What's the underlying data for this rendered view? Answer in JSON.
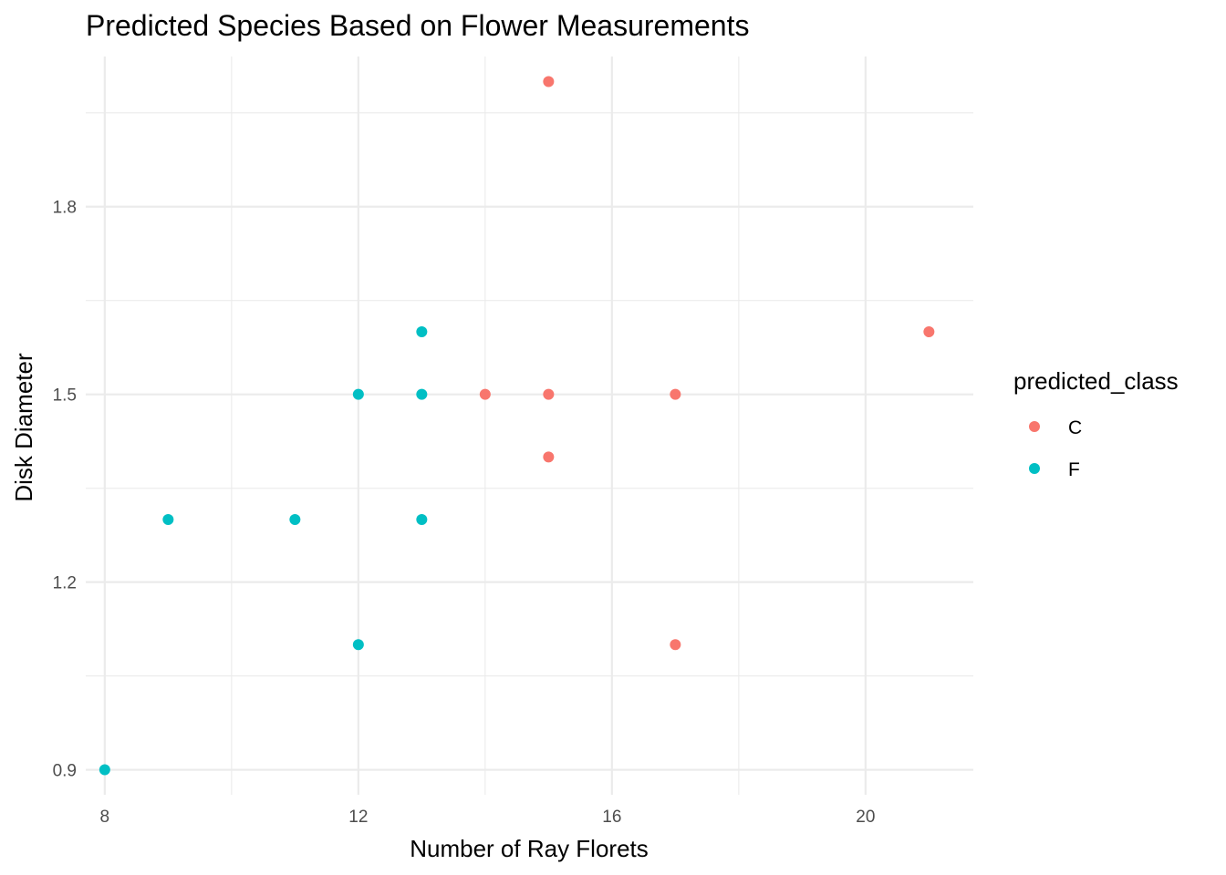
{
  "chart_data": {
    "type": "scatter",
    "title": "Predicted Species Based on Flower Measurements",
    "xlabel": "Number of Ray Florets",
    "ylabel": "Disk Diameter",
    "xlim": [
      7.7,
      21.7
    ],
    "ylim": [
      0.86,
      2.04
    ],
    "x_ticks": [
      8,
      12,
      16,
      20
    ],
    "x_tick_labels": [
      "8",
      "12",
      "16",
      "20"
    ],
    "x_minor_ticks": [
      10,
      14,
      18
    ],
    "y_ticks": [
      0.9,
      1.2,
      1.5,
      1.8
    ],
    "y_tick_labels": [
      "0.9",
      "1.2",
      "1.5",
      "1.8"
    ],
    "y_minor_ticks": [
      1.05,
      1.35,
      1.65,
      1.95
    ],
    "grid": true,
    "legend": {
      "title": "predicted_class",
      "placement": "right",
      "entries": [
        {
          "label": "C",
          "color": "#F8766D"
        },
        {
          "label": "F",
          "color": "#00BFC4"
        }
      ]
    },
    "series": [
      {
        "name": "C",
        "color": "#F8766D",
        "points": [
          {
            "x": 15,
            "y": 2.0
          },
          {
            "x": 21,
            "y": 1.6
          },
          {
            "x": 14,
            "y": 1.5
          },
          {
            "x": 15,
            "y": 1.5
          },
          {
            "x": 17,
            "y": 1.5
          },
          {
            "x": 15,
            "y": 1.4
          },
          {
            "x": 17,
            "y": 1.1
          }
        ]
      },
      {
        "name": "F",
        "color": "#00BFC4",
        "points": [
          {
            "x": 13,
            "y": 1.6
          },
          {
            "x": 12,
            "y": 1.5
          },
          {
            "x": 13,
            "y": 1.5
          },
          {
            "x": 9,
            "y": 1.3
          },
          {
            "x": 11,
            "y": 1.3
          },
          {
            "x": 13,
            "y": 1.3
          },
          {
            "x": 12,
            "y": 1.1
          },
          {
            "x": 8,
            "y": 0.9
          }
        ]
      }
    ]
  }
}
